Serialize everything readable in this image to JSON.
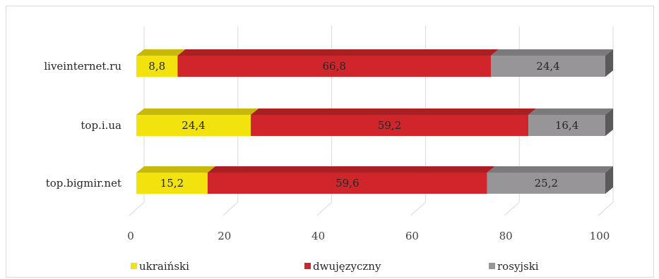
{
  "chart_data": {
    "type": "bar",
    "orientation": "horizontal",
    "stacked": true,
    "three_d": true,
    "categories": [
      "liveinternet.ru",
      "top.i.ua",
      "top.bigmir.net"
    ],
    "series": [
      {
        "name": "ukraiński",
        "values": [
          8.8,
          24.4,
          15.2
        ],
        "labels": [
          "8,8",
          "24,4",
          "15,2"
        ],
        "color": "#f2e20e"
      },
      {
        "name": "dwujęzyczny",
        "values": [
          66.8,
          59.2,
          59.6
        ],
        "labels": [
          "66,8",
          "59,2",
          "59,6"
        ],
        "color": "#d0262b"
      },
      {
        "name": "rosyjski",
        "values": [
          24.4,
          16.4,
          25.2
        ],
        "labels": [
          "24,4",
          "16,4",
          "25,2"
        ],
        "color": "#979597"
      }
    ],
    "xlim": [
      0,
      100
    ],
    "xticks": [
      0,
      20,
      40,
      60,
      80,
      100
    ],
    "xtick_labels": [
      "0",
      "20",
      "40",
      "60",
      "80",
      "100"
    ],
    "grid": true,
    "legend_position": "bottom"
  }
}
